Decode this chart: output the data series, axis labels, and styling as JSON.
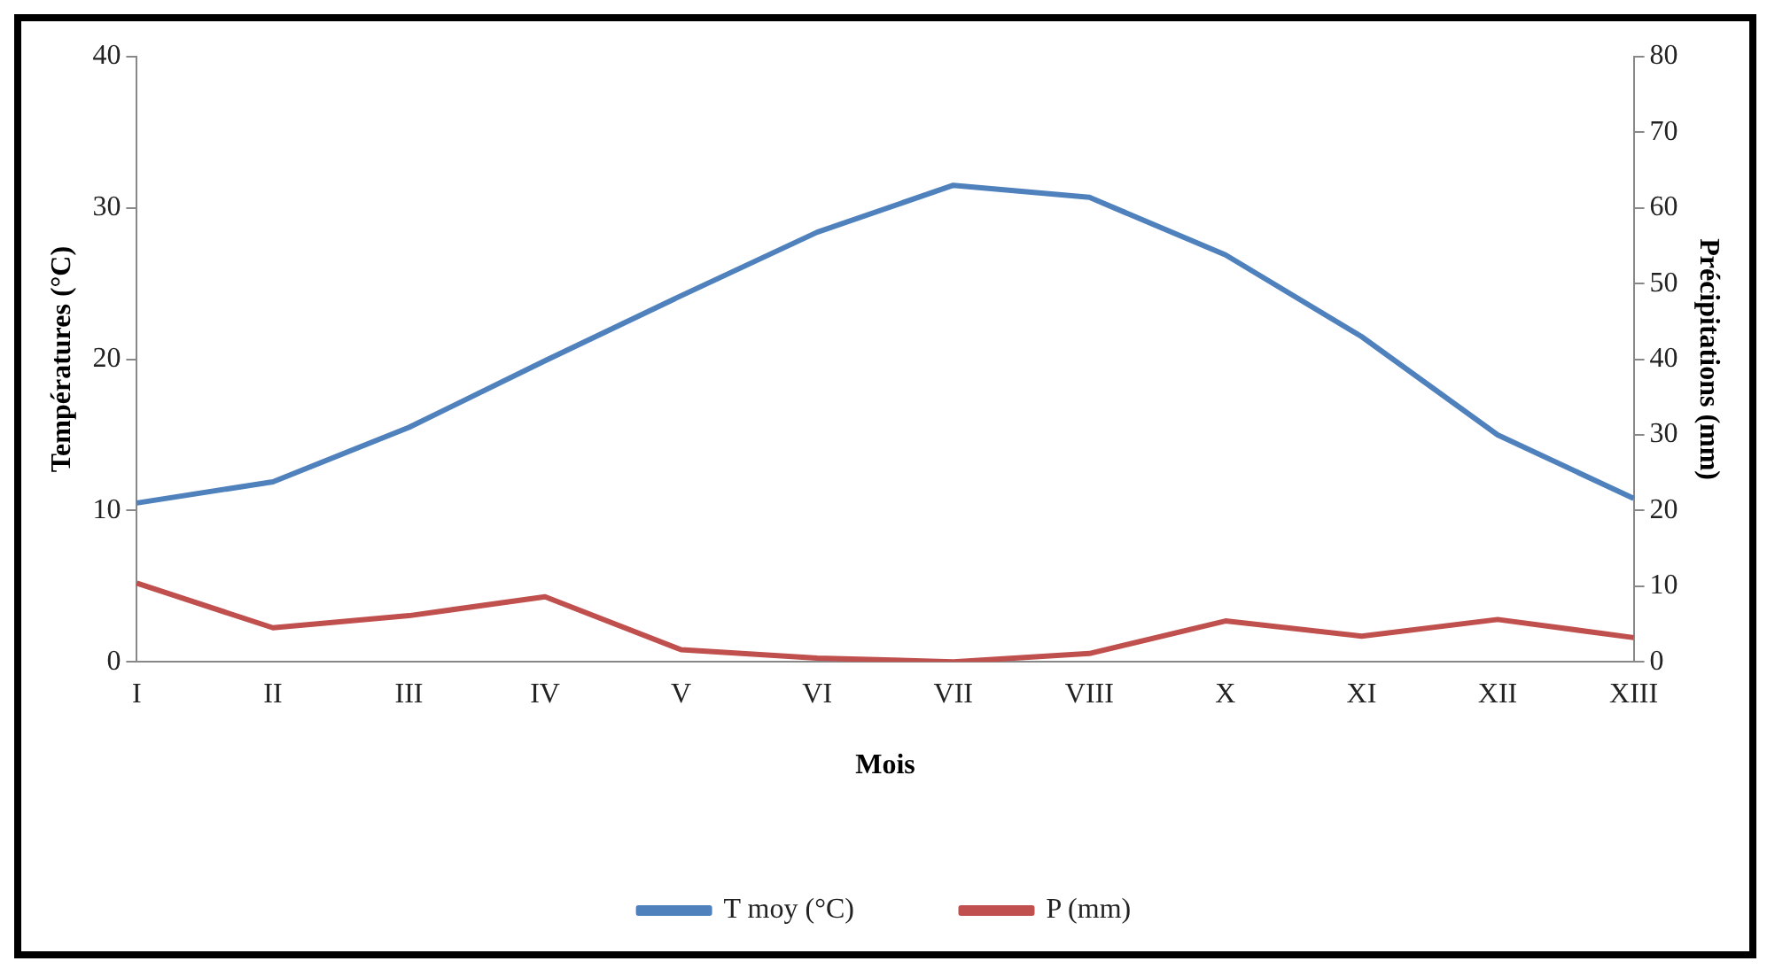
{
  "chart_data": {
    "type": "line",
    "xlabel": "Mois",
    "ylabel": "Températures (°C)",
    "y2label": "Précipitations (mm)",
    "categories": [
      "I",
      "II",
      "III",
      "IV",
      "V",
      "VI",
      "VII",
      "VIII",
      "X",
      "XI",
      "XII",
      "XIII"
    ],
    "series": [
      {
        "name": "T moy (°C)",
        "color": "#4f81bd",
        "values": [
          10.5,
          11.9,
          15.5,
          19.9,
          24.2,
          28.4,
          31.5,
          30.7,
          26.9,
          21.5,
          15.0,
          10.8
        ]
      },
      {
        "name": "P (mm)",
        "color": "#c0504d",
        "axis": "y2",
        "values": [
          10.4,
          4.5,
          6.1,
          8.6,
          1.6,
          0.5,
          0,
          1.1,
          5.4,
          3.4,
          5.6,
          3.2
        ]
      }
    ],
    "ylim": [
      0,
      40
    ],
    "yticks": [
      0,
      10,
      20,
      30,
      40
    ],
    "y2lim": [
      0,
      80
    ],
    "y2ticks": [
      0,
      10,
      20,
      30,
      40,
      50,
      60,
      70,
      80
    ],
    "grid": false,
    "legend": "bottom",
    "marker": "none",
    "line_style": "solid"
  }
}
